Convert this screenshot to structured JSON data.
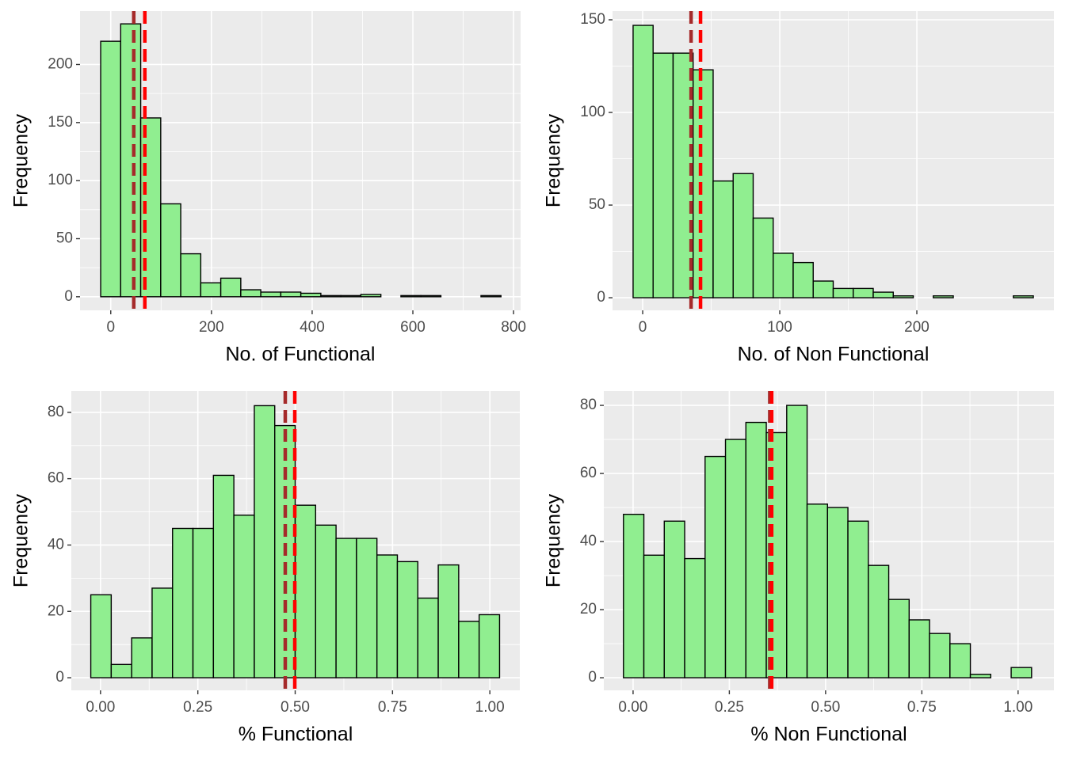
{
  "chart_data": [
    {
      "type": "histogram",
      "x_label": "No. of Functional",
      "y_label": "Frequency",
      "bins": [
        -20,
        19.75,
        59.5,
        99.25,
        139,
        178.75,
        218.5,
        258.25,
        298,
        337.75,
        377.5,
        417.25,
        457,
        496.75,
        536.5,
        576.25,
        616,
        655.75,
        695.5,
        735.25,
        775
      ],
      "counts": [
        220,
        235,
        154,
        80,
        37,
        12,
        16,
        6,
        4,
        4,
        3,
        1,
        1,
        2,
        0,
        1,
        1,
        0,
        0,
        1
      ],
      "color": "#90ee90",
      "edgecolor": "#000000",
      "vlines": [
        {
          "value": 45.7,
          "color": "#a52a2a"
        },
        {
          "value": 67.7,
          "color": "#ff0000"
        }
      ],
      "xlim": [
        -61,
        814
      ],
      "ylim": [
        -11.7,
        246
      ],
      "xticks": [
        0,
        200,
        400,
        600,
        800
      ],
      "yticks": [
        0,
        50,
        100,
        150,
        200
      ],
      "grid": true
    },
    {
      "type": "histogram",
      "x_label": "No. of Non Functional",
      "y_label": "Frequency",
      "bins": [
        -7,
        7.6,
        22.2,
        36.8,
        51.4,
        66,
        80.6,
        95.2,
        109.8,
        124.4,
        139,
        153.6,
        168.2,
        182.8,
        197.4,
        212,
        226.6,
        241.2,
        255.8,
        270.4,
        285
      ],
      "counts": [
        147,
        132,
        132,
        123,
        63,
        67,
        43,
        24,
        19,
        9,
        5,
        5,
        3,
        1,
        0,
        1,
        0,
        0,
        0,
        1
      ],
      "color": "#90ee90",
      "edgecolor": "#000000",
      "vlines": [
        {
          "value": 35.3,
          "color": "#a52a2a"
        },
        {
          "value": 42.2,
          "color": "#ff0000"
        }
      ],
      "xlim": [
        -22,
        300
      ],
      "ylim": [
        -6.8,
        154.7
      ],
      "xticks": [
        0,
        100,
        200
      ],
      "yticks": [
        0,
        50,
        100,
        150
      ],
      "grid": true
    },
    {
      "type": "histogram",
      "x_label": "% Functional",
      "y_label": "Frequency",
      "bins": [
        -0.025,
        0.0275,
        0.08,
        0.1325,
        0.185,
        0.2375,
        0.29,
        0.3425,
        0.395,
        0.4475,
        0.5,
        0.5525,
        0.605,
        0.6575,
        0.71,
        0.7625,
        0.815,
        0.8675,
        0.92,
        0.9725,
        1.025
      ],
      "counts": [
        25,
        4,
        12,
        27,
        45,
        45,
        61,
        49,
        82,
        76,
        52,
        46,
        42,
        42,
        37,
        35,
        24,
        34,
        17,
        19
      ],
      "color": "#90ee90",
      "edgecolor": "#000000",
      "vlines": [
        {
          "value": 0.4745,
          "color": "#a52a2a"
        },
        {
          "value": 0.499,
          "color": "#ff0000"
        }
      ],
      "xlim": [
        -0.075,
        1.077
      ],
      "ylim": [
        -3.8,
        86.4
      ],
      "xticks": [
        {
          "value": 0,
          "label": "0.00"
        },
        {
          "value": 0.25,
          "label": "0.25"
        },
        {
          "value": 0.5,
          "label": "0.50"
        },
        {
          "value": 0.75,
          "label": "0.75"
        },
        {
          "value": 1,
          "label": "1.00"
        }
      ],
      "yticks": [
        0,
        20,
        40,
        60,
        80
      ],
      "grid": true
    },
    {
      "type": "histogram",
      "x_label": "% Non Functional",
      "y_label": "Frequency",
      "bins": [
        -0.025,
        0.028,
        0.081,
        0.134,
        0.187,
        0.24,
        0.293,
        0.346,
        0.399,
        0.452,
        0.505,
        0.558,
        0.611,
        0.664,
        0.717,
        0.77,
        0.823,
        0.876,
        0.929,
        0.982,
        1.035
      ],
      "counts": [
        48,
        36,
        46,
        35,
        65,
        70,
        75,
        72,
        80,
        51,
        50,
        46,
        33,
        23,
        17,
        13,
        10,
        1,
        0,
        3
      ],
      "color": "#90ee90",
      "edgecolor": "#000000",
      "vlines": [
        {
          "value": 0.355,
          "color": "#a52a2a"
        },
        {
          "value": 0.36,
          "color": "#ff0000"
        }
      ],
      "xlim": [
        -0.076,
        1.093
      ],
      "ylim": [
        -3.7,
        84.2
      ],
      "xticks": [
        {
          "value": 0,
          "label": "0.00"
        },
        {
          "value": 0.25,
          "label": "0.25"
        },
        {
          "value": 0.5,
          "label": "0.50"
        },
        {
          "value": 0.75,
          "label": "0.75"
        },
        {
          "value": 1,
          "label": "1.00"
        }
      ],
      "yticks": [
        0,
        20,
        40,
        60,
        80
      ],
      "grid": true
    }
  ]
}
